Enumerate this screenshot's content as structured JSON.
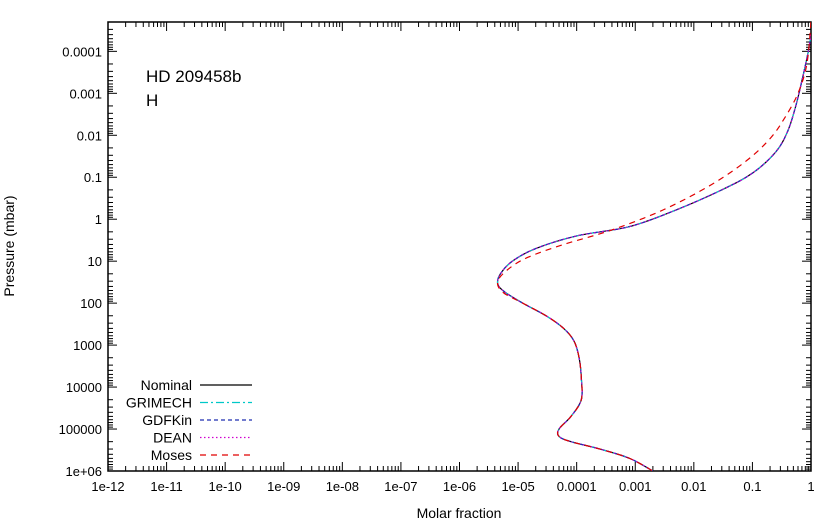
{
  "chart_data": {
    "type": "line",
    "xlabel": "Molar fraction",
    "ylabel": "Pressure (mbar)",
    "x_scale": "log",
    "y_scale": "log",
    "y_inverted": true,
    "xlim": [
      1e-12,
      1
    ],
    "ylim": [
      1000000,
      2e-05
    ],
    "x_tick_labels": [
      "1e-12",
      "1e-11",
      "1e-10",
      "1e-09",
      "1e-08",
      "1e-07",
      "1e-06",
      "1e-05",
      "0.0001",
      "0.001",
      "0.01",
      "0.1",
      "1"
    ],
    "y_tick_labels": [
      "0.0001",
      "0.001",
      "0.01",
      "0.1",
      "1",
      "10",
      "100",
      "1000",
      "10000",
      "100000",
      "1e+06"
    ],
    "annotations": [
      "HD 209458b",
      "H"
    ],
    "grid": false,
    "legend_position": "bottom-left",
    "series": [
      {
        "name": "Nominal",
        "color": "#000000",
        "dash": "solid",
        "points": [
          [
            1.0,
            4e-05
          ],
          [
            0.9,
            0.0001
          ],
          [
            0.7,
            0.0005
          ],
          [
            0.55,
            0.002
          ],
          [
            0.4,
            0.008
          ],
          [
            0.25,
            0.025
          ],
          [
            0.1,
            0.08
          ],
          [
            0.03,
            0.2
          ],
          [
            0.005,
            0.6
          ],
          [
            0.0008,
            1.5
          ],
          [
            0.0001,
            2.5
          ],
          [
            2e-05,
            5
          ],
          [
            8e-06,
            10
          ],
          [
            5e-06,
            20
          ],
          [
            4.5e-06,
            35
          ],
          [
            6e-06,
            55
          ],
          [
            1.2e-05,
            100
          ],
          [
            3e-05,
            200
          ],
          [
            6e-05,
            400
          ],
          [
            9e-05,
            800
          ],
          [
            0.00011,
            2000
          ],
          [
            0.00012,
            6000
          ],
          [
            0.00012,
            20000
          ],
          [
            8e-05,
            50000
          ],
          [
            5e-05,
            100000
          ],
          [
            5e-05,
            150000
          ],
          [
            8e-05,
            200000
          ],
          [
            0.00025,
            300000
          ],
          [
            0.0008,
            500000
          ],
          [
            0.002,
            1000000
          ]
        ]
      },
      {
        "name": "GRIMECH",
        "color": "#00c8c8",
        "dash": "dashdot",
        "points": [
          [
            1.0,
            4e-05
          ],
          [
            0.9,
            0.0001
          ],
          [
            0.7,
            0.0005
          ],
          [
            0.55,
            0.002
          ],
          [
            0.4,
            0.008
          ],
          [
            0.25,
            0.025
          ],
          [
            0.1,
            0.08
          ],
          [
            0.03,
            0.2
          ],
          [
            0.005,
            0.6
          ],
          [
            0.0008,
            1.5
          ],
          [
            0.0001,
            2.5
          ],
          [
            2e-05,
            5
          ],
          [
            8e-06,
            10
          ],
          [
            5e-06,
            20
          ],
          [
            4.5e-06,
            35
          ],
          [
            6e-06,
            55
          ],
          [
            1.2e-05,
            100
          ],
          [
            3e-05,
            200
          ],
          [
            6e-05,
            400
          ],
          [
            9e-05,
            800
          ],
          [
            0.00011,
            2000
          ],
          [
            0.00012,
            6000
          ],
          [
            0.00012,
            20000
          ],
          [
            8e-05,
            50000
          ],
          [
            5e-05,
            100000
          ],
          [
            5e-05,
            150000
          ],
          [
            8e-05,
            200000
          ],
          [
            0.00025,
            300000
          ],
          [
            0.0008,
            500000
          ],
          [
            0.002,
            1000000
          ]
        ]
      },
      {
        "name": "GDFKin",
        "color": "#1f2fb0",
        "dash": "dash",
        "points": [
          [
            1.0,
            4e-05
          ],
          [
            0.9,
            0.0001
          ],
          [
            0.7,
            0.0005
          ],
          [
            0.55,
            0.002
          ],
          [
            0.4,
            0.008
          ],
          [
            0.25,
            0.025
          ],
          [
            0.1,
            0.08
          ],
          [
            0.03,
            0.2
          ],
          [
            0.005,
            0.6
          ],
          [
            0.0008,
            1.5
          ],
          [
            0.0001,
            2.5
          ],
          [
            2e-05,
            5
          ],
          [
            8e-06,
            10
          ],
          [
            5e-06,
            20
          ],
          [
            4.5e-06,
            35
          ],
          [
            6e-06,
            55
          ],
          [
            1.2e-05,
            100
          ],
          [
            3e-05,
            200
          ],
          [
            6e-05,
            400
          ],
          [
            9e-05,
            800
          ],
          [
            0.00011,
            2000
          ],
          [
            0.00012,
            6000
          ],
          [
            0.00012,
            20000
          ],
          [
            8e-05,
            50000
          ],
          [
            5e-05,
            100000
          ],
          [
            5e-05,
            150000
          ],
          [
            8e-05,
            200000
          ],
          [
            0.00025,
            300000
          ],
          [
            0.0008,
            500000
          ],
          [
            0.002,
            1000000
          ]
        ]
      },
      {
        "name": "DEAN",
        "color": "#d000d0",
        "dash": "dot",
        "points": [
          [
            1.0,
            4e-05
          ],
          [
            0.9,
            0.0001
          ],
          [
            0.7,
            0.0005
          ],
          [
            0.55,
            0.002
          ],
          [
            0.4,
            0.008
          ],
          [
            0.25,
            0.025
          ],
          [
            0.1,
            0.08
          ],
          [
            0.03,
            0.2
          ],
          [
            0.005,
            0.6
          ],
          [
            0.0008,
            1.5
          ],
          [
            0.0001,
            2.5
          ],
          [
            2e-05,
            5
          ],
          [
            8e-06,
            10
          ],
          [
            5e-06,
            20
          ],
          [
            4.5e-06,
            35
          ],
          [
            6e-06,
            55
          ],
          [
            1.2e-05,
            100
          ],
          [
            3e-05,
            200
          ],
          [
            6e-05,
            400
          ],
          [
            9e-05,
            800
          ],
          [
            0.00011,
            2000
          ],
          [
            0.00012,
            6000
          ],
          [
            0.00012,
            20000
          ],
          [
            8e-05,
            50000
          ],
          [
            5e-05,
            100000
          ],
          [
            5e-05,
            150000
          ],
          [
            8e-05,
            200000
          ],
          [
            0.00025,
            300000
          ],
          [
            0.0008,
            500000
          ],
          [
            0.002,
            1000000
          ]
        ]
      },
      {
        "name": "Moses",
        "color": "#e00000",
        "dash": "longdash",
        "points": [
          [
            1.0,
            2e-05
          ],
          [
            0.85,
            0.0002
          ],
          [
            0.6,
            0.001
          ],
          [
            0.35,
            0.004
          ],
          [
            0.2,
            0.012
          ],
          [
            0.08,
            0.04
          ],
          [
            0.02,
            0.15
          ],
          [
            0.003,
            0.6
          ],
          [
            0.0004,
            1.8
          ],
          [
            6e-05,
            4
          ],
          [
            1.5e-05,
            8
          ],
          [
            7e-06,
            15
          ],
          [
            4.5e-06,
            30
          ],
          [
            5.5e-06,
            55
          ],
          [
            1.2e-05,
            100
          ],
          [
            3e-05,
            200
          ],
          [
            6e-05,
            400
          ],
          [
            9e-05,
            800
          ],
          [
            0.00011,
            2000
          ],
          [
            0.00012,
            6000
          ],
          [
            0.00012,
            20000
          ],
          [
            8e-05,
            50000
          ],
          [
            5e-05,
            100000
          ],
          [
            5e-05,
            150000
          ],
          [
            8e-05,
            200000
          ],
          [
            0.00025,
            300000
          ],
          [
            0.0008,
            500000
          ],
          [
            0.002,
            1000000
          ]
        ]
      }
    ]
  }
}
